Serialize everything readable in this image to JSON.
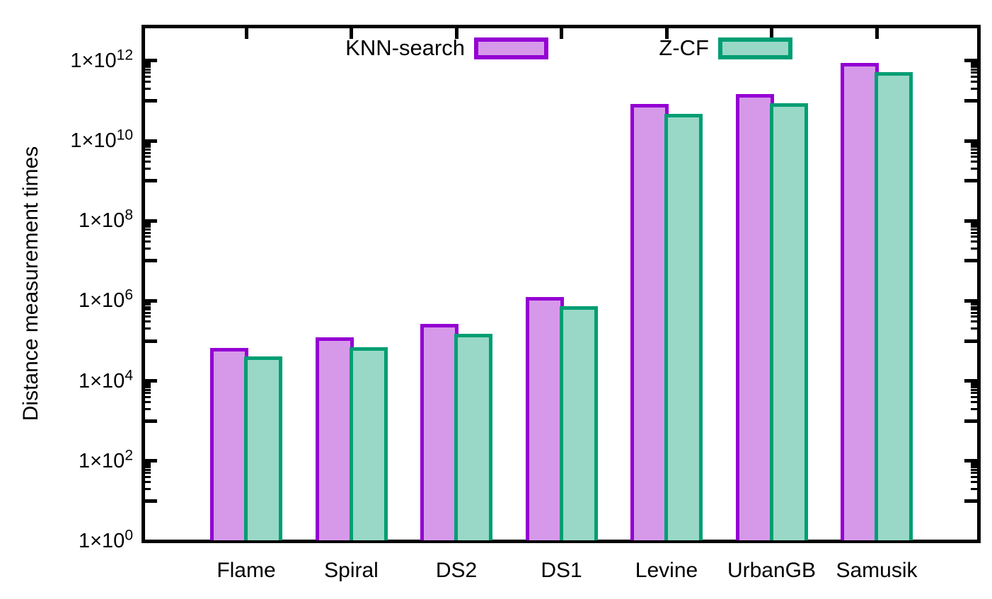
{
  "chart_data": {
    "type": "bar",
    "title": "",
    "ylabel": "Distance measurement times",
    "xlabel": "",
    "y_scale": "log",
    "ylim": [
      1,
      10000000000000.0
    ],
    "grid": false,
    "legend_position": "top-inside",
    "axis_color": "#000000",
    "background_color": "#ffffff",
    "y_tick_label_prefix": "1×10",
    "y_tick_exponents": [
      0,
      2,
      4,
      6,
      8,
      10,
      12
    ],
    "categories": [
      "Flame",
      "Spiral",
      "DS2",
      "DS1",
      "Levine",
      "UrbanGB",
      "Samusik"
    ],
    "series": [
      {
        "name": "KNN-search",
        "border_color": "#9400d3",
        "fill_color": "#d699ea",
        "values": [
          59000.0,
          110000.0,
          235000.0,
          1100000.0,
          74000000000.0,
          130000000000.0,
          780000000000.0
        ]
      },
      {
        "name": "Z-CF",
        "border_color": "#009e73",
        "fill_color": "#99d8c6",
        "values": [
          36000.0,
          62000.0,
          135000.0,
          660000.0,
          42000000000.0,
          78000000000.0,
          450000000000.0
        ]
      }
    ]
  }
}
